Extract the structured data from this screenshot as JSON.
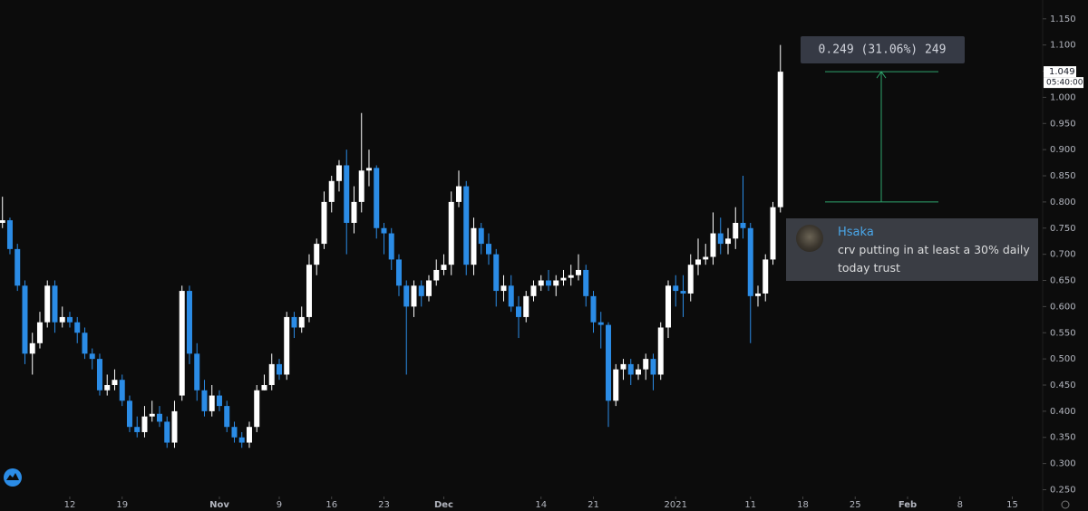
{
  "chart_data": {
    "type": "candlestick",
    "up_color": "#ffffff",
    "down_color": "#2b8ce6",
    "xlim": [
      -0.33,
      139.06
    ],
    "xticks": [
      {
        "value": 9,
        "label": "12"
      },
      {
        "value": 16,
        "label": "19"
      },
      {
        "value": 29,
        "label": "Nov"
      },
      {
        "value": 37,
        "label": "9"
      },
      {
        "value": 44,
        "label": "16"
      },
      {
        "value": 51,
        "label": "23"
      },
      {
        "value": 59,
        "label": "Dec"
      },
      {
        "value": 72,
        "label": "14"
      },
      {
        "value": 79,
        "label": "21"
      },
      {
        "value": 90,
        "label": "2021"
      },
      {
        "value": 100,
        "label": "11"
      },
      {
        "value": 107,
        "label": "18"
      },
      {
        "value": 114,
        "label": "25"
      },
      {
        "value": 121,
        "label": "Feb"
      },
      {
        "value": 128,
        "label": "8"
      },
      {
        "value": 135,
        "label": "15"
      }
    ],
    "ylim": [
      0.237,
      1.186
    ],
    "yticks": [
      {
        "value": 0.25,
        "label": "0.250"
      },
      {
        "value": 0.3,
        "label": "0.300"
      },
      {
        "value": 0.35,
        "label": "0.350"
      },
      {
        "value": 0.4,
        "label": "0.400"
      },
      {
        "value": 0.45,
        "label": "0.450"
      },
      {
        "value": 0.5,
        "label": "0.500"
      },
      {
        "value": 0.55,
        "label": "0.550"
      },
      {
        "value": 0.6,
        "label": "0.600"
      },
      {
        "value": 0.65,
        "label": "0.650"
      },
      {
        "value": 0.7,
        "label": "0.700"
      },
      {
        "value": 0.75,
        "label": "0.750"
      },
      {
        "value": 0.8,
        "label": "0.800"
      },
      {
        "value": 0.85,
        "label": "0.850"
      },
      {
        "value": 0.9,
        "label": "0.900"
      },
      {
        "value": 0.95,
        "label": "0.950"
      },
      {
        "value": 1.0,
        "label": "1.000"
      },
      {
        "value": 1.05,
        "label": "1.050"
      },
      {
        "value": 1.1,
        "label": "1.100"
      },
      {
        "value": 1.15,
        "label": "1.150"
      }
    ],
    "open": [
      0.76,
      0.765,
      0.71,
      0.64,
      0.51,
      0.53,
      0.57,
      0.64,
      0.57,
      0.58,
      0.57,
      0.55,
      0.51,
      0.5,
      0.44,
      0.45,
      0.46,
      0.42,
      0.37,
      0.36,
      0.39,
      0.395,
      0.38,
      0.34,
      0.43,
      0.63,
      0.51,
      0.44,
      0.4,
      0.43,
      0.41,
      0.37,
      0.35,
      0.34,
      0.37,
      0.44,
      0.45,
      0.49,
      0.47,
      0.58,
      0.56,
      0.58,
      0.68,
      0.72,
      0.8,
      0.84,
      0.87,
      0.76,
      0.8,
      0.86,
      0.865,
      0.75,
      0.74,
      0.69,
      0.64,
      0.6,
      0.64,
      0.62,
      0.65,
      0.67,
      0.68,
      0.8,
      0.83,
      0.68,
      0.75,
      0.72,
      0.7,
      0.63,
      0.64,
      0.6,
      0.58,
      0.62,
      0.64,
      0.65,
      0.64,
      0.65,
      0.655,
      0.66,
      0.67,
      0.62,
      0.57,
      0.565,
      0.42,
      0.48,
      0.49,
      0.47,
      0.48,
      0.5,
      0.47,
      0.56,
      0.64,
      0.63,
      0.625,
      0.68,
      0.69,
      0.695,
      0.74,
      0.72,
      0.73,
      0.76,
      0.75,
      0.62,
      0.625,
      0.69,
      0.79
    ],
    "high": [
      0.81,
      0.77,
      0.72,
      0.65,
      0.55,
      0.59,
      0.65,
      0.65,
      0.6,
      0.59,
      0.58,
      0.56,
      0.52,
      0.51,
      0.47,
      0.48,
      0.47,
      0.43,
      0.39,
      0.41,
      0.42,
      0.41,
      0.39,
      0.42,
      0.64,
      0.64,
      0.53,
      0.46,
      0.45,
      0.44,
      0.42,
      0.38,
      0.36,
      0.38,
      0.45,
      0.47,
      0.51,
      0.5,
      0.59,
      0.59,
      0.6,
      0.7,
      0.73,
      0.82,
      0.85,
      0.88,
      0.9,
      0.83,
      0.97,
      0.9,
      0.87,
      0.76,
      0.75,
      0.7,
      0.65,
      0.65,
      0.65,
      0.66,
      0.69,
      0.7,
      0.82,
      0.86,
      0.84,
      0.77,
      0.76,
      0.74,
      0.71,
      0.66,
      0.66,
      0.62,
      0.63,
      0.65,
      0.66,
      0.67,
      0.66,
      0.67,
      0.68,
      0.7,
      0.68,
      0.63,
      0.59,
      0.57,
      0.49,
      0.5,
      0.5,
      0.49,
      0.51,
      0.51,
      0.57,
      0.65,
      0.66,
      0.66,
      0.7,
      0.73,
      0.72,
      0.78,
      0.77,
      0.75,
      0.79,
      0.85,
      0.76,
      0.64,
      0.7,
      0.8,
      1.1
    ],
    "low": [
      0.75,
      0.7,
      0.63,
      0.49,
      0.47,
      0.52,
      0.56,
      0.55,
      0.56,
      0.56,
      0.53,
      0.5,
      0.48,
      0.43,
      0.43,
      0.44,
      0.41,
      0.36,
      0.35,
      0.35,
      0.38,
      0.37,
      0.33,
      0.33,
      0.42,
      0.49,
      0.42,
      0.39,
      0.39,
      0.4,
      0.36,
      0.34,
      0.33,
      0.33,
      0.36,
      0.44,
      0.44,
      0.46,
      0.46,
      0.54,
      0.55,
      0.57,
      0.66,
      0.71,
      0.78,
      0.82,
      0.7,
      0.74,
      0.78,
      0.83,
      0.73,
      0.7,
      0.67,
      0.62,
      0.47,
      0.58,
      0.6,
      0.61,
      0.64,
      0.66,
      0.66,
      0.79,
      0.66,
      0.66,
      0.7,
      0.68,
      0.6,
      0.61,
      0.59,
      0.54,
      0.57,
      0.61,
      0.63,
      0.63,
      0.62,
      0.64,
      0.64,
      0.65,
      0.6,
      0.55,
      0.52,
      0.37,
      0.41,
      0.46,
      0.45,
      0.46,
      0.46,
      0.44,
      0.46,
      0.54,
      0.6,
      0.58,
      0.61,
      0.66,
      0.68,
      0.68,
      0.7,
      0.7,
      0.71,
      0.73,
      0.53,
      0.6,
      0.61,
      0.68,
      0.78
    ],
    "close": [
      0.765,
      0.71,
      0.64,
      0.51,
      0.53,
      0.57,
      0.64,
      0.57,
      0.58,
      0.57,
      0.55,
      0.51,
      0.5,
      0.44,
      0.45,
      0.46,
      0.42,
      0.37,
      0.36,
      0.39,
      0.395,
      0.38,
      0.34,
      0.4,
      0.63,
      0.51,
      0.44,
      0.4,
      0.43,
      0.41,
      0.37,
      0.35,
      0.34,
      0.37,
      0.44,
      0.45,
      0.49,
      0.47,
      0.58,
      0.56,
      0.58,
      0.68,
      0.72,
      0.8,
      0.84,
      0.87,
      0.76,
      0.8,
      0.86,
      0.865,
      0.75,
      0.74,
      0.69,
      0.64,
      0.6,
      0.64,
      0.62,
      0.65,
      0.67,
      0.68,
      0.8,
      0.83,
      0.68,
      0.75,
      0.72,
      0.7,
      0.63,
      0.64,
      0.6,
      0.58,
      0.62,
      0.64,
      0.65,
      0.64,
      0.65,
      0.655,
      0.66,
      0.67,
      0.62,
      0.57,
      0.565,
      0.42,
      0.48,
      0.49,
      0.47,
      0.48,
      0.5,
      0.47,
      0.56,
      0.64,
      0.63,
      0.625,
      0.68,
      0.69,
      0.695,
      0.74,
      0.72,
      0.73,
      0.76,
      0.75,
      0.62,
      0.625,
      0.69,
      0.79,
      1.049
    ],
    "countdown": "05:40:00",
    "measure": {
      "label": "0.249 (31.06%) 249",
      "from": 0.8,
      "to": 1.049,
      "color": "#2ea36b"
    }
  },
  "message": {
    "author": "Hsaka",
    "text": "crv putting in at least a 30% daily today trust"
  }
}
